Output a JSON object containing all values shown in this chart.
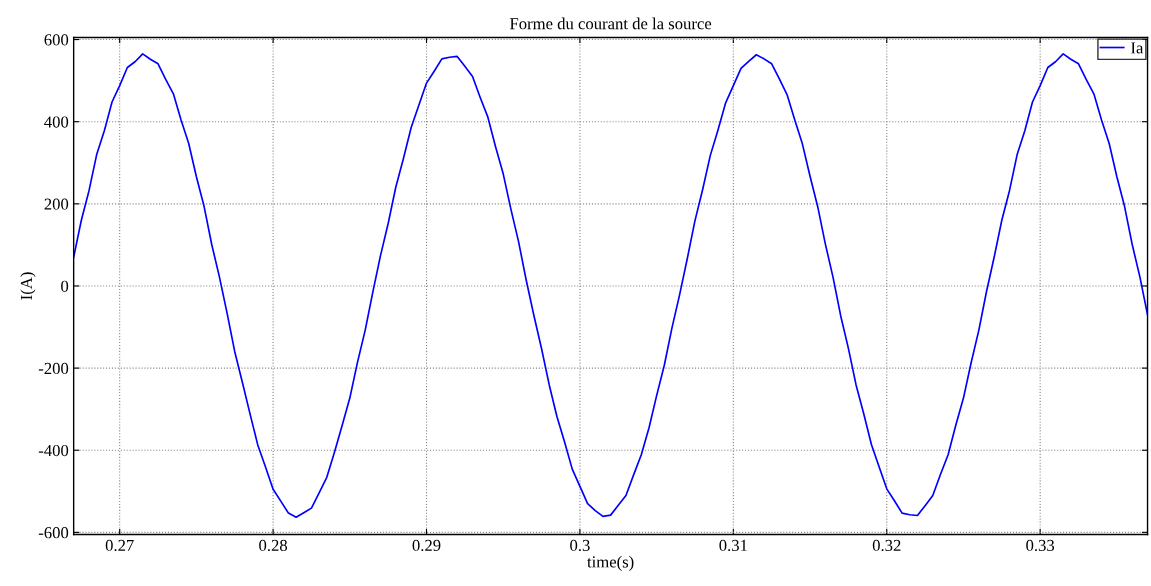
{
  "chart_data": {
    "type": "line",
    "title": "Forme du courant de la source",
    "xlabel": "time(s)",
    "ylabel": "I(A)",
    "xlim": [
      0.267,
      0.337
    ],
    "xticks": [
      0.27,
      0.28,
      0.29,
      0.3,
      0.31,
      0.32,
      0.33
    ],
    "ylim": [
      -605,
      605
    ],
    "yticks": [
      -600,
      -400,
      -200,
      0,
      200,
      400,
      600
    ],
    "grid": true,
    "legend": "top right",
    "marker": "none",
    "line_style": "solid",
    "x": [
      0.267,
      0.2675,
      0.268,
      0.2685,
      0.269,
      0.2695,
      0.27,
      0.2705,
      0.271,
      0.2715,
      0.272,
      0.2725,
      0.273,
      0.2735,
      0.274,
      0.2745,
      0.275,
      0.2755,
      0.276,
      0.2765,
      0.277,
      0.2775,
      0.278,
      0.2785,
      0.279,
      0.2795,
      0.28,
      0.2805,
      0.281,
      0.2815,
      0.282,
      0.2825,
      0.283,
      0.2835,
      0.284,
      0.2845,
      0.285,
      0.2855,
      0.286,
      0.2865,
      0.287,
      0.2875,
      0.288,
      0.2885,
      0.289,
      0.2895,
      0.29,
      0.2905,
      0.291,
      0.2915,
      0.292,
      0.2925,
      0.293,
      0.2935,
      0.294,
      0.2945,
      0.295,
      0.2955,
      0.296,
      0.2965,
      0.297,
      0.2975,
      0.298,
      0.2985,
      0.299,
      0.2995,
      0.3,
      0.3005,
      0.301,
      0.3015,
      0.302,
      0.3025,
      0.303,
      0.3035,
      0.304,
      0.3045,
      0.305,
      0.3055,
      0.306,
      0.3065,
      0.307,
      0.3075,
      0.308,
      0.3085,
      0.309,
      0.3095,
      0.31,
      0.3105,
      0.311,
      0.3115,
      0.312,
      0.3125,
      0.313,
      0.3135,
      0.314,
      0.3145,
      0.315,
      0.3155,
      0.316,
      0.3165,
      0.317,
      0.3175,
      0.318,
      0.3185,
      0.319,
      0.3195,
      0.32,
      0.3205,
      0.321,
      0.3215,
      0.322,
      0.3225,
      0.323,
      0.3235,
      0.324,
      0.3245,
      0.325,
      0.3255,
      0.326,
      0.3265,
      0.327,
      0.3275,
      0.328,
      0.3285,
      0.329,
      0.3295,
      0.33,
      0.3305,
      0.331,
      0.3315,
      0.332,
      0.3325,
      0.333,
      0.3335,
      0.334,
      0.3345,
      0.335,
      0.3355,
      0.336,
      0.3365,
      0.337
    ],
    "series": [
      {
        "name": "Ia",
        "color": "#0000ff",
        "values": [
          70,
          160,
          232,
          320,
          378,
          448,
          488,
          532,
          546,
          565,
          552,
          541,
          503,
          468,
          404,
          347,
          266,
          194,
          101,
          22,
          -66,
          -160,
          -235,
          -312,
          -387,
          -440,
          -495,
          -524,
          -553,
          -563,
          -552,
          -541,
          -504,
          -466,
          -405,
          -340,
          -273,
          -186,
          -108,
          -15,
          74,
          152,
          241,
          311,
          386,
          440,
          494,
          523,
          553,
          557,
          559,
          535,
          510,
          459,
          411,
          339,
          273,
          187,
          108,
          14,
          -72,
          -153,
          -241,
          -318,
          -380,
          -446,
          -488,
          -530,
          -547,
          -561,
          -558,
          -534,
          -510,
          -460,
          -411,
          -346,
          -267,
          -193,
          -102,
          -21,
          67,
          159,
          235,
          318,
          380,
          446,
          488,
          530,
          547,
          563,
          553,
          541,
          504,
          466,
          405,
          346,
          267,
          193,
          102,
          21,
          -73,
          -152,
          -241,
          -311,
          -386,
          -440,
          -494,
          -523,
          -553,
          -557,
          -559,
          -535,
          -510,
          -459,
          -411,
          -339,
          -273,
          -187,
          -108,
          -14,
          70,
          160,
          232,
          320,
          378,
          448,
          488,
          532,
          546,
          565,
          552,
          541,
          503,
          468,
          404,
          347,
          266,
          194,
          101,
          22,
          -70
        ]
      }
    ]
  }
}
